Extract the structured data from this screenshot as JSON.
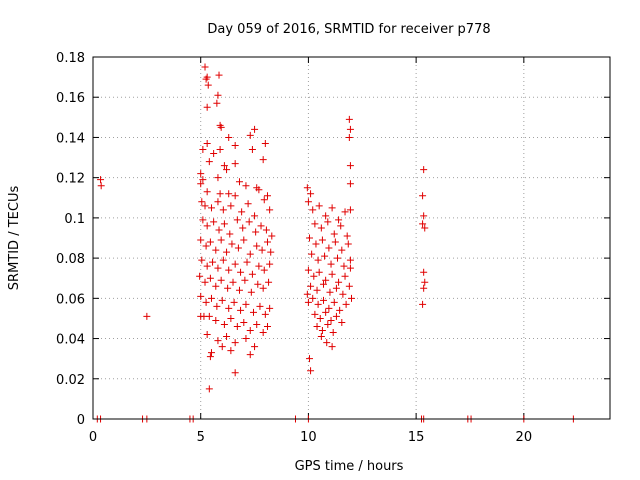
{
  "chart_data": {
    "type": "scatter",
    "title": "Day 059 of 2016, SRMTID for receiver p778",
    "xlabel": "GPS time / hours",
    "ylabel": "SRMTID / TECUs",
    "xlim": [
      0,
      24
    ],
    "ylim": [
      0,
      0.18
    ],
    "xticks": [
      0,
      5,
      10,
      15,
      20
    ],
    "xtick_labels": [
      "0",
      "5",
      "10",
      "15",
      "20"
    ],
    "yticks": [
      0,
      0.02,
      0.04,
      0.06,
      0.08,
      0.1,
      0.12,
      0.14,
      0.16,
      0.18
    ],
    "ytick_labels": [
      "0",
      "0.02",
      "0.04",
      "0.06",
      "0.08",
      "0.1",
      "0.12",
      "0.14",
      "0.16",
      "0.18"
    ],
    "grid": true,
    "marker": "+",
    "color": "#e00000",
    "series": [
      {
        "name": "SRMTID",
        "points": [
          [
            0.35,
            0.119
          ],
          [
            0.38,
            0.116
          ],
          [
            2.5,
            0.051
          ],
          [
            0.2,
            0.0
          ],
          [
            0.35,
            0.0
          ],
          [
            2.3,
            0.0
          ],
          [
            2.5,
            0.0
          ],
          [
            4.5,
            0.0
          ],
          [
            4.65,
            0.0
          ],
          [
            9.4,
            0.0
          ],
          [
            10.0,
            0.0
          ],
          [
            15.25,
            0.0
          ],
          [
            15.35,
            0.0
          ],
          [
            17.4,
            0.0
          ],
          [
            17.55,
            0.0
          ],
          [
            20.0,
            0.0
          ],
          [
            22.3,
            0.0
          ],
          [
            5.2,
            0.175
          ],
          [
            5.25,
            0.169
          ],
          [
            5.3,
            0.17
          ],
          [
            5.85,
            0.171
          ],
          [
            5.35,
            0.166
          ],
          [
            5.8,
            0.161
          ],
          [
            5.3,
            0.155
          ],
          [
            5.75,
            0.157
          ],
          [
            5.9,
            0.146
          ],
          [
            5.95,
            0.145
          ],
          [
            7.5,
            0.144
          ],
          [
            6.3,
            0.14
          ],
          [
            7.3,
            0.141
          ],
          [
            5.3,
            0.137
          ],
          [
            5.1,
            0.134
          ],
          [
            5.6,
            0.132
          ],
          [
            5.9,
            0.134
          ],
          [
            6.6,
            0.136
          ],
          [
            7.4,
            0.134
          ],
          [
            8.0,
            0.137
          ],
          [
            5.4,
            0.128
          ],
          [
            6.1,
            0.126
          ],
          [
            6.6,
            0.127
          ],
          [
            7.9,
            0.129
          ],
          [
            5.8,
            0.12
          ],
          [
            6.2,
            0.124
          ],
          [
            5.0,
            0.122
          ],
          [
            5.0,
            0.117
          ],
          [
            5.1,
            0.119
          ],
          [
            6.8,
            0.118
          ],
          [
            7.1,
            0.116
          ],
          [
            7.6,
            0.115
          ],
          [
            5.3,
            0.113
          ],
          [
            5.9,
            0.112
          ],
          [
            6.3,
            0.112
          ],
          [
            6.6,
            0.111
          ],
          [
            7.7,
            0.114
          ],
          [
            8.1,
            0.111
          ],
          [
            5.05,
            0.108
          ],
          [
            5.2,
            0.106
          ],
          [
            5.5,
            0.105
          ],
          [
            5.8,
            0.108
          ],
          [
            6.05,
            0.104
          ],
          [
            6.4,
            0.106
          ],
          [
            6.9,
            0.103
          ],
          [
            7.2,
            0.107
          ],
          [
            7.5,
            0.101
          ],
          [
            7.95,
            0.109
          ],
          [
            8.2,
            0.104
          ],
          [
            5.1,
            0.099
          ],
          [
            5.3,
            0.096
          ],
          [
            5.6,
            0.098
          ],
          [
            5.85,
            0.094
          ],
          [
            6.1,
            0.097
          ],
          [
            6.35,
            0.092
          ],
          [
            6.7,
            0.099
          ],
          [
            6.95,
            0.095
          ],
          [
            7.25,
            0.098
          ],
          [
            7.55,
            0.093
          ],
          [
            7.8,
            0.096
          ],
          [
            8.05,
            0.094
          ],
          [
            8.3,
            0.091
          ],
          [
            5.0,
            0.089
          ],
          [
            5.25,
            0.086
          ],
          [
            5.45,
            0.088
          ],
          [
            5.7,
            0.084
          ],
          [
            5.95,
            0.089
          ],
          [
            6.2,
            0.083
          ],
          [
            6.45,
            0.087
          ],
          [
            6.75,
            0.085
          ],
          [
            7.0,
            0.089
          ],
          [
            7.3,
            0.082
          ],
          [
            7.6,
            0.086
          ],
          [
            7.85,
            0.084
          ],
          [
            8.1,
            0.088
          ],
          [
            8.25,
            0.083
          ],
          [
            5.05,
            0.079
          ],
          [
            5.3,
            0.076
          ],
          [
            5.55,
            0.078
          ],
          [
            5.8,
            0.075
          ],
          [
            6.05,
            0.079
          ],
          [
            6.3,
            0.074
          ],
          [
            6.6,
            0.077
          ],
          [
            6.85,
            0.073
          ],
          [
            7.15,
            0.078
          ],
          [
            7.4,
            0.072
          ],
          [
            7.7,
            0.076
          ],
          [
            7.95,
            0.074
          ],
          [
            8.2,
            0.077
          ],
          [
            4.95,
            0.071
          ],
          [
            5.2,
            0.068
          ],
          [
            5.45,
            0.07
          ],
          [
            5.7,
            0.066
          ],
          [
            5.95,
            0.069
          ],
          [
            6.25,
            0.065
          ],
          [
            6.5,
            0.068
          ],
          [
            6.8,
            0.064
          ],
          [
            7.05,
            0.069
          ],
          [
            7.35,
            0.063
          ],
          [
            7.65,
            0.067
          ],
          [
            7.9,
            0.065
          ],
          [
            8.15,
            0.068
          ],
          [
            5.0,
            0.061
          ],
          [
            5.25,
            0.058
          ],
          [
            5.5,
            0.06
          ],
          [
            5.75,
            0.056
          ],
          [
            6.0,
            0.059
          ],
          [
            6.3,
            0.055
          ],
          [
            6.55,
            0.058
          ],
          [
            6.85,
            0.054
          ],
          [
            7.1,
            0.057
          ],
          [
            7.45,
            0.053
          ],
          [
            7.75,
            0.056
          ],
          [
            8.0,
            0.052
          ],
          [
            8.2,
            0.055
          ],
          [
            5.0,
            0.051
          ],
          [
            5.15,
            0.051
          ],
          [
            5.4,
            0.051
          ],
          [
            5.7,
            0.049
          ],
          [
            6.1,
            0.047
          ],
          [
            6.4,
            0.05
          ],
          [
            6.7,
            0.046
          ],
          [
            7.0,
            0.048
          ],
          [
            7.3,
            0.044
          ],
          [
            7.6,
            0.047
          ],
          [
            7.9,
            0.043
          ],
          [
            8.1,
            0.046
          ],
          [
            5.3,
            0.042
          ],
          [
            5.8,
            0.039
          ],
          [
            6.2,
            0.041
          ],
          [
            6.6,
            0.038
          ],
          [
            7.1,
            0.04
          ],
          [
            7.5,
            0.036
          ],
          [
            6.0,
            0.036
          ],
          [
            5.5,
            0.033
          ],
          [
            5.45,
            0.031
          ],
          [
            6.4,
            0.034
          ],
          [
            7.3,
            0.032
          ],
          [
            5.4,
            0.015
          ],
          [
            6.6,
            0.023
          ],
          [
            9.95,
            0.115
          ],
          [
            10.1,
            0.112
          ],
          [
            11.9,
            0.149
          ],
          [
            11.95,
            0.144
          ],
          [
            11.9,
            0.14
          ],
          [
            11.95,
            0.126
          ],
          [
            11.95,
            0.117
          ],
          [
            10.0,
            0.108
          ],
          [
            10.2,
            0.104
          ],
          [
            10.5,
            0.106
          ],
          [
            10.8,
            0.101
          ],
          [
            11.1,
            0.105
          ],
          [
            11.4,
            0.099
          ],
          [
            11.7,
            0.103
          ],
          [
            11.95,
            0.104
          ],
          [
            10.3,
            0.097
          ],
          [
            10.6,
            0.095
          ],
          [
            10.9,
            0.098
          ],
          [
            11.2,
            0.092
          ],
          [
            11.5,
            0.096
          ],
          [
            11.8,
            0.091
          ],
          [
            10.05,
            0.09
          ],
          [
            10.35,
            0.087
          ],
          [
            10.65,
            0.089
          ],
          [
            10.95,
            0.085
          ],
          [
            11.25,
            0.088
          ],
          [
            11.55,
            0.084
          ],
          [
            11.85,
            0.087
          ],
          [
            10.15,
            0.082
          ],
          [
            10.45,
            0.079
          ],
          [
            10.75,
            0.081
          ],
          [
            11.05,
            0.077
          ],
          [
            11.35,
            0.08
          ],
          [
            11.65,
            0.076
          ],
          [
            11.95,
            0.079
          ],
          [
            10.0,
            0.074
          ],
          [
            10.25,
            0.071
          ],
          [
            10.5,
            0.073
          ],
          [
            10.8,
            0.069
          ],
          [
            11.1,
            0.072
          ],
          [
            11.4,
            0.068
          ],
          [
            11.7,
            0.071
          ],
          [
            11.95,
            0.075
          ],
          [
            10.1,
            0.066
          ],
          [
            10.4,
            0.064
          ],
          [
            10.7,
            0.067
          ],
          [
            11.0,
            0.063
          ],
          [
            11.3,
            0.065
          ],
          [
            11.6,
            0.062
          ],
          [
            11.9,
            0.066
          ],
          [
            9.95,
            0.062
          ],
          [
            10.0,
            0.058
          ],
          [
            10.2,
            0.06
          ],
          [
            10.45,
            0.057
          ],
          [
            10.7,
            0.059
          ],
          [
            10.95,
            0.055
          ],
          [
            11.2,
            0.058
          ],
          [
            11.45,
            0.054
          ],
          [
            11.75,
            0.057
          ],
          [
            12.0,
            0.06
          ],
          [
            10.3,
            0.052
          ],
          [
            10.55,
            0.05
          ],
          [
            10.8,
            0.053
          ],
          [
            11.05,
            0.049
          ],
          [
            11.3,
            0.051
          ],
          [
            11.55,
            0.048
          ],
          [
            10.4,
            0.046
          ],
          [
            10.65,
            0.044
          ],
          [
            10.9,
            0.047
          ],
          [
            11.15,
            0.043
          ],
          [
            10.6,
            0.041
          ],
          [
            10.85,
            0.038
          ],
          [
            11.1,
            0.036
          ],
          [
            10.05,
            0.03
          ],
          [
            10.1,
            0.024
          ],
          [
            15.35,
            0.124
          ],
          [
            15.3,
            0.111
          ],
          [
            15.35,
            0.101
          ],
          [
            15.3,
            0.097
          ],
          [
            15.4,
            0.095
          ],
          [
            15.35,
            0.073
          ],
          [
            15.4,
            0.068
          ],
          [
            15.35,
            0.065
          ],
          [
            15.3,
            0.057
          ]
        ]
      }
    ]
  }
}
